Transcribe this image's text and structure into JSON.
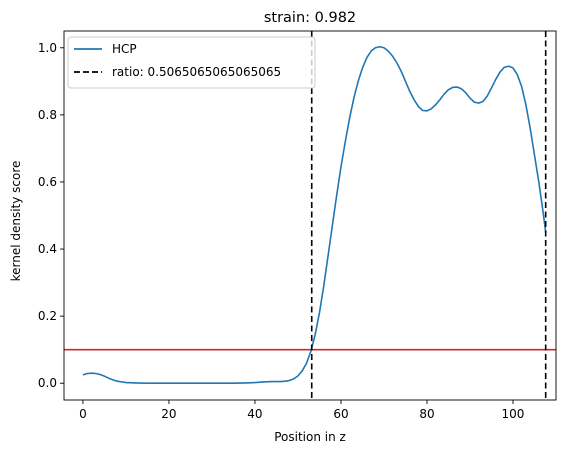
{
  "chart_data": {
    "type": "line",
    "title": "strain: 0.982",
    "xlabel": "Position in z",
    "ylabel": "kernel density score",
    "xlim": [
      -4.4,
      110.0
    ],
    "ylim": [
      -0.05,
      1.05
    ],
    "xticks": [
      0,
      20,
      40,
      60,
      80,
      100
    ],
    "yticks": [
      0.0,
      0.2,
      0.4,
      0.6,
      0.8,
      1.0
    ],
    "grid": false,
    "legend_position": "upper-left",
    "series": [
      {
        "name": "HCP",
        "color": "#1f77b4",
        "x": [
          0,
          1,
          2,
          3,
          4,
          5,
          6,
          7,
          8,
          9,
          10,
          12,
          15,
          20,
          25,
          30,
          35,
          38,
          40,
          42,
          44,
          46,
          47,
          48,
          49,
          50,
          51,
          52,
          53,
          54,
          55,
          56,
          57,
          58,
          59,
          60,
          61,
          62,
          63,
          64,
          65,
          66,
          67,
          68,
          69,
          70,
          71,
          72,
          73,
          74,
          75,
          76,
          77,
          78,
          79,
          80,
          81,
          82,
          83,
          84,
          85,
          86,
          87,
          88,
          89,
          90,
          91,
          92,
          93,
          94,
          95,
          96,
          97,
          98,
          99,
          100,
          101,
          102,
          103,
          104,
          105,
          106,
          107,
          107.6
        ],
        "y": [
          0.025,
          0.029,
          0.03,
          0.029,
          0.026,
          0.021,
          0.015,
          0.01,
          0.006,
          0.004,
          0.002,
          0.001,
          0.0,
          0.0,
          0.0,
          0.0,
          0.0,
          0.001,
          0.002,
          0.004,
          0.005,
          0.005,
          0.006,
          0.008,
          0.013,
          0.022,
          0.037,
          0.06,
          0.095,
          0.145,
          0.21,
          0.29,
          0.38,
          0.47,
          0.56,
          0.645,
          0.72,
          0.79,
          0.85,
          0.9,
          0.94,
          0.97,
          0.99,
          1.0,
          1.003,
          1.0,
          0.99,
          0.975,
          0.955,
          0.93,
          0.9,
          0.87,
          0.845,
          0.825,
          0.813,
          0.812,
          0.818,
          0.83,
          0.845,
          0.862,
          0.875,
          0.882,
          0.883,
          0.878,
          0.866,
          0.85,
          0.838,
          0.835,
          0.84,
          0.856,
          0.88,
          0.906,
          0.928,
          0.942,
          0.945,
          0.94,
          0.92,
          0.885,
          0.83,
          0.76,
          0.68,
          0.6,
          0.51,
          0.45
        ]
      }
    ],
    "vlines": [
      {
        "name": "ratio: 0.5065065065065065",
        "x": 53.2,
        "color": "#000000",
        "style": "dashed",
        "in_legend": true
      },
      {
        "x": 107.6,
        "color": "#000000",
        "style": "dashed",
        "in_legend": false
      }
    ],
    "hlines": [
      {
        "y": 0.1,
        "color": "#d62728"
      }
    ]
  }
}
